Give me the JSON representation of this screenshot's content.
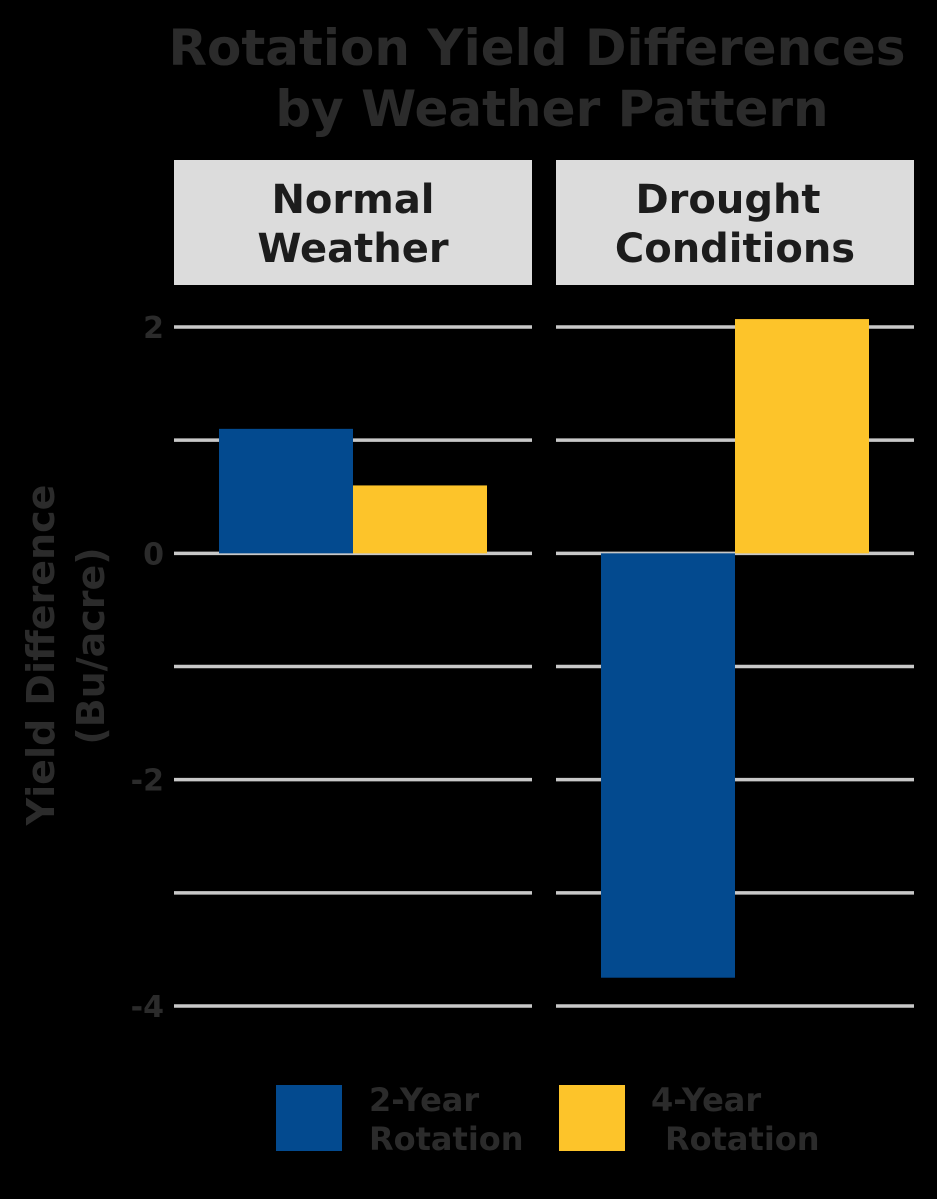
{
  "chart_data": {
    "type": "bar",
    "title": [
      "Rotation Yield Differences",
      "by Weather Pattern"
    ],
    "ylabel": [
      "Yield Difference",
      "(Bu/acre)"
    ],
    "xlabel": "",
    "ylim": [
      -4,
      2
    ],
    "y_ticks": [
      -4,
      -3,
      -2,
      -1,
      0,
      1,
      2
    ],
    "y_tick_labels": [
      "-4",
      "",
      "-2",
      "",
      "0",
      "",
      "2"
    ],
    "grid": true,
    "legend_position": "bottom",
    "facets": [
      {
        "label": [
          "Normal",
          "Weather"
        ]
      },
      {
        "label": [
          "Drought",
          "Conditions"
        ]
      }
    ],
    "series": [
      {
        "name": [
          "2-Year",
          "Rotation"
        ],
        "color": "#034a8f",
        "values": [
          1.1,
          -3.75
        ]
      },
      {
        "name": [
          "4-Year",
          "Rotation"
        ],
        "color": "#fdc42a",
        "values": [
          0.6,
          2.07
        ]
      }
    ]
  }
}
